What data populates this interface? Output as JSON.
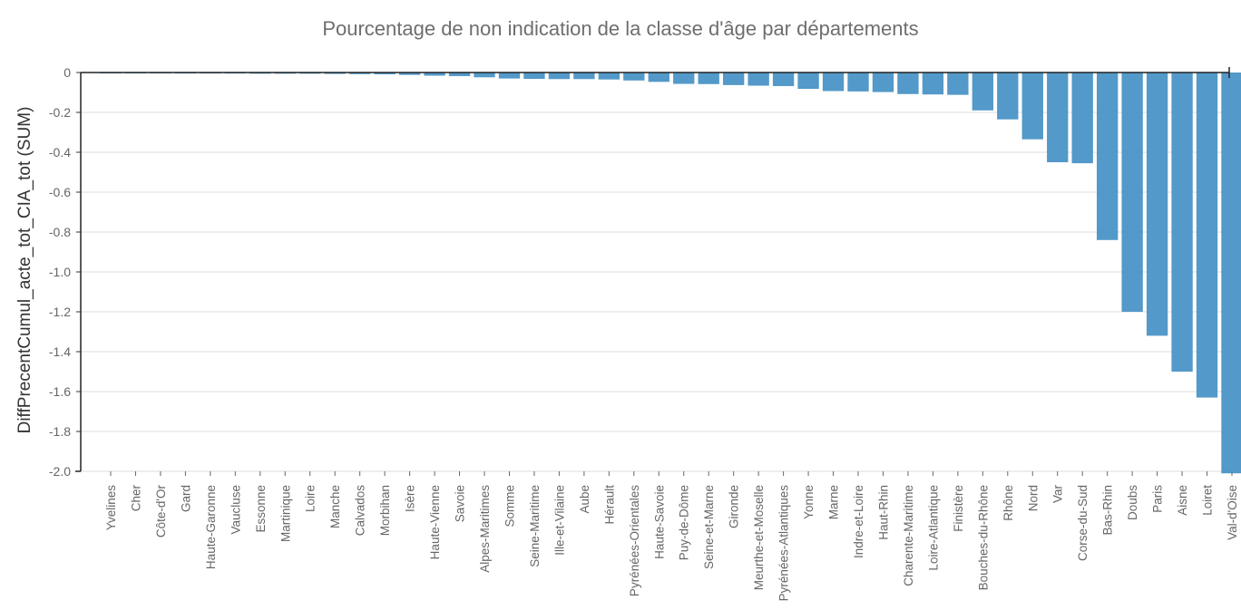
{
  "chart_data": {
    "type": "bar",
    "title": "Pourcentage de non indication de la classe d'âge  par départements",
    "ylabel": "DiffPrecentCumul_acte_tot_CIA_tot (SUM)",
    "xlabel": "",
    "ylim": [
      -2.0,
      0
    ],
    "yticks": [
      0,
      -0.2,
      -0.4,
      -0.6,
      -0.8,
      -1.0,
      -1.2,
      -1.4,
      -1.6,
      -1.8,
      -2.0
    ],
    "ytick_labels": [
      "0",
      "-0.2",
      "-0.4",
      "-0.6",
      "-0.8",
      "-1.0",
      "-1.2",
      "-1.4",
      "-1.6",
      "-1.8",
      "-2.0"
    ],
    "grid": true,
    "bar_color": "#4a93c6",
    "categories": [
      "Yvelines",
      "Cher",
      "Côte-d'Or",
      "Gard",
      "Haute-Garonne",
      "Vaucluse",
      "Essonne",
      "Martinique",
      "Loire",
      "Manche",
      "Calvados",
      "Morbihan",
      "Isère",
      "Haute-Vienne",
      "Savoie",
      "Alpes-Maritimes",
      "Somme",
      "Seine-Maritime",
      "Ille-et-Vilaine",
      "Aube",
      "Hérault",
      "Pyrénées-Orientales",
      "Haute-Savoie",
      "Puy-de-Dôme",
      "Seine-et-Marne",
      "Gironde",
      "Meurthe-et-Moselle",
      "Pyrénées-Atlantiques",
      "Yonne",
      "Marne",
      "Indre-et-Loire",
      "Haut-Rhin",
      "Charente-Maritime",
      "Loire-Atlantique",
      "Finistère",
      "Bouches-du-Rhône",
      "Rhône",
      "Nord",
      "Var",
      "Corse-du-Sud",
      "Bas-Rhin",
      "Doubs",
      "Paris",
      "Aisne",
      "Loiret",
      "Val-d'Oise"
    ],
    "values": [
      -0.003,
      -0.004,
      -0.004,
      -0.005,
      -0.005,
      -0.005,
      -0.006,
      -0.006,
      -0.006,
      -0.007,
      -0.008,
      -0.009,
      -0.012,
      -0.016,
      -0.018,
      -0.024,
      -0.03,
      -0.032,
      -0.033,
      -0.033,
      -0.035,
      -0.04,
      -0.047,
      -0.057,
      -0.058,
      -0.063,
      -0.066,
      -0.068,
      -0.082,
      -0.093,
      -0.095,
      -0.098,
      -0.108,
      -0.11,
      -0.112,
      -0.19,
      -0.235,
      -0.335,
      -0.45,
      -0.455,
      -0.84,
      -1.2,
      -1.32,
      -1.5,
      -1.63,
      -2.01
    ]
  }
}
